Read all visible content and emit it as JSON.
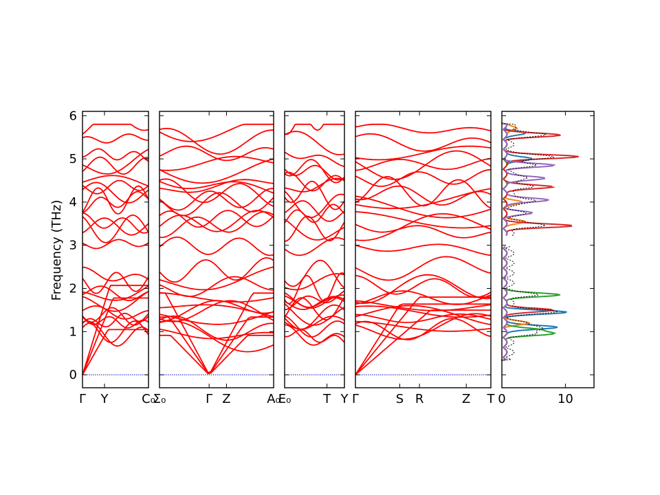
{
  "chart_data": {
    "type": "line",
    "title": "",
    "ylabel": "Frequency (THz)",
    "ylim": [
      -0.3,
      6.1
    ],
    "yticks": [
      0,
      1,
      2,
      3,
      4,
      5,
      6
    ],
    "grid": false,
    "band_color": "#ff0000",
    "zero_line_color": "#0000cc",
    "segments": [
      {
        "x": [
          0,
          1.35
        ],
        "kpoint_labels": [
          {
            "x": 0,
            "label": "Γ"
          },
          {
            "x": 0.45,
            "label": "Y"
          },
          {
            "x": 1.35,
            "label": "C₀"
          }
        ]
      },
      {
        "x": [
          0,
          2.3
        ],
        "kpoint_labels": [
          {
            "x": 0,
            "label": "Σ₀"
          },
          {
            "x": 1.0,
            "label": "Γ"
          },
          {
            "x": 1.35,
            "label": "Z"
          },
          {
            "x": 2.3,
            "label": "A₀"
          }
        ]
      },
      {
        "x": [
          0,
          1.2
        ],
        "kpoint_labels": [
          {
            "x": 0,
            "label": "E₀"
          },
          {
            "x": 0.85,
            "label": "T"
          },
          {
            "x": 1.2,
            "label": "Y"
          }
        ]
      },
      {
        "x": [
          0,
          2.75
        ],
        "kpoint_labels": [
          {
            "x": 0,
            "label": "Γ"
          },
          {
            "x": 0.9,
            "label": "S"
          },
          {
            "x": 1.3,
            "label": "R"
          },
          {
            "x": 2.25,
            "label": "Z"
          },
          {
            "x": 2.75,
            "label": "T"
          }
        ]
      }
    ],
    "band_frequencies_at_gamma": [
      0,
      0,
      0,
      0.98,
      1.0,
      1.15,
      1.3,
      1.42,
      1.5,
      1.62,
      1.78,
      1.95,
      2.1,
      2.38,
      3.0,
      3.38,
      3.45,
      3.6,
      3.9,
      4.0,
      4.25,
      4.3,
      4.5,
      4.78,
      4.85,
      5.15,
      5.42,
      5.75
    ],
    "dos_panel": {
      "xlim": [
        0,
        14.5
      ],
      "xticks": [
        0,
        10
      ],
      "series": [
        {
          "color": "#1f77b4",
          "peaks": [
            [
              1.1,
              8.5
            ],
            [
              1.45,
              9.5
            ],
            [
              5.0,
              4.5
            ],
            [
              5.6,
              3.0
            ]
          ]
        },
        {
          "color": "#ff7f0e",
          "peaks": [
            [
              1.2,
              3.5
            ],
            [
              3.55,
              3.0
            ],
            [
              4.0,
              2.5
            ],
            [
              5.7,
              2.0
            ]
          ]
        },
        {
          "color": "#2ca02c",
          "peaks": [
            [
              0.95,
              7.0
            ],
            [
              1.85,
              8.5
            ],
            [
              1.05,
              5.0
            ]
          ]
        },
        {
          "color": "#d62728",
          "peaks": [
            [
              1.5,
              7.5
            ],
            [
              3.45,
              10.5
            ],
            [
              4.35,
              7.5
            ],
            [
              5.05,
              11.5
            ],
            [
              5.55,
              8.5
            ]
          ]
        },
        {
          "color": "#9467bd",
          "peaks": [
            [
              4.05,
              7.0
            ],
            [
              4.55,
              6.5
            ],
            [
              4.85,
              7.5
            ],
            [
              3.75,
              4.0
            ]
          ]
        }
      ],
      "total_color": "#000000"
    }
  }
}
